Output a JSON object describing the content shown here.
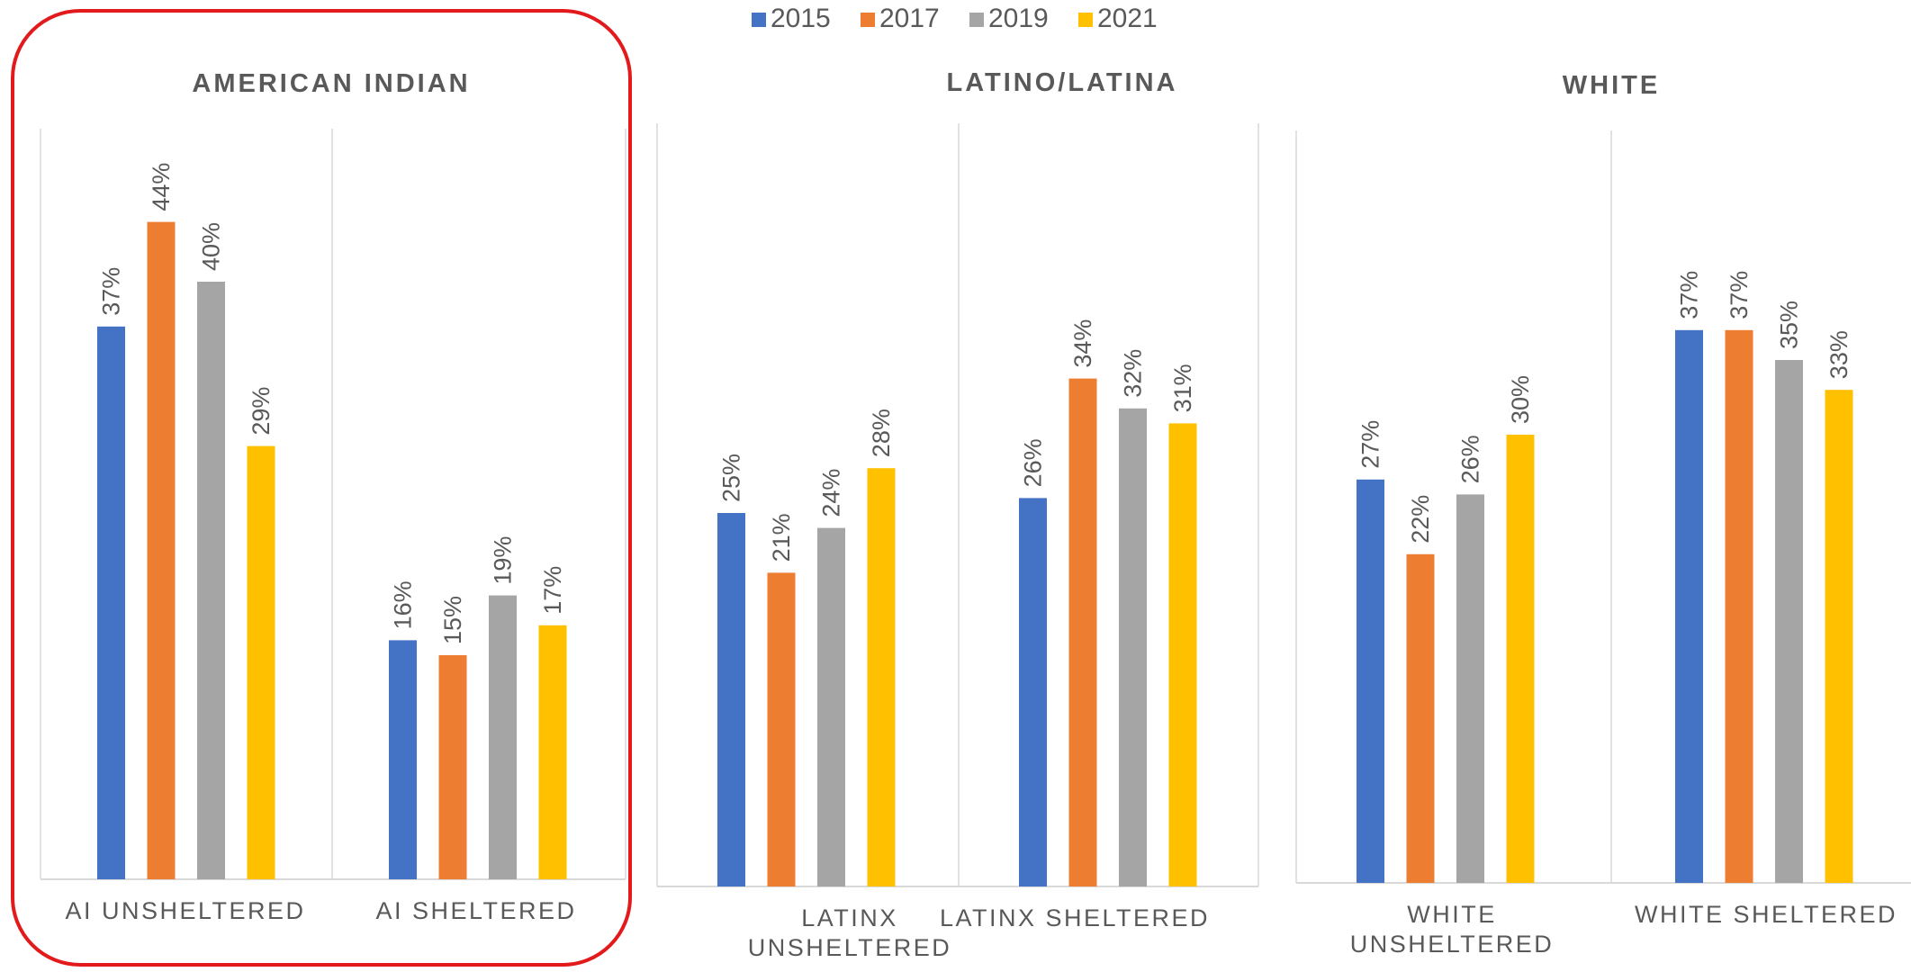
{
  "legend": [
    {
      "label": "2015",
      "color": "#4472C4"
    },
    {
      "label": "2017",
      "color": "#ED7D31"
    },
    {
      "label": "2019",
      "color": "#A5A5A5"
    },
    {
      "label": "2021",
      "color": "#FFC000"
    }
  ],
  "highlight_color": "#E31A1C",
  "chart_data": [
    {
      "type": "bar",
      "title": "AMERICAN INDIAN",
      "categories": [
        "AI UNSHELTERED",
        "AI SHELTERED"
      ],
      "series": [
        {
          "name": "2015",
          "values": [
            37,
            16
          ]
        },
        {
          "name": "2017",
          "values": [
            44,
            15
          ]
        },
        {
          "name": "2019",
          "values": [
            40,
            19
          ]
        },
        {
          "name": "2021",
          "values": [
            29,
            17
          ]
        }
      ],
      "data_labels": [
        [
          "37%",
          "44%",
          "40%",
          "29%"
        ],
        [
          "16%",
          "15%",
          "19%",
          "17%"
        ]
      ],
      "highlighted": true
    },
    {
      "type": "bar",
      "title": "LATINO/LATINA",
      "categories": [
        "LATINX UNSHELTERED",
        "LATINX SHELTERED"
      ],
      "series": [
        {
          "name": "2015",
          "values": [
            25,
            26
          ]
        },
        {
          "name": "2017",
          "values": [
            21,
            34
          ]
        },
        {
          "name": "2019",
          "values": [
            24,
            32
          ]
        },
        {
          "name": "2021",
          "values": [
            28,
            31
          ]
        }
      ],
      "data_labels": [
        [
          "25%",
          "21%",
          "24%",
          "28%"
        ],
        [
          "26%",
          "34%",
          "32%",
          "31%"
        ]
      ],
      "highlighted": false
    },
    {
      "type": "bar",
      "title": "WHITE",
      "categories": [
        "WHITE UNSHELTERED",
        "WHITE SHELTERED"
      ],
      "series": [
        {
          "name": "2015",
          "values": [
            27,
            37
          ]
        },
        {
          "name": "2017",
          "values": [
            22,
            37
          ]
        },
        {
          "name": "2019",
          "values": [
            26,
            35
          ]
        },
        {
          "name": "2021",
          "values": [
            30,
            33
          ]
        }
      ],
      "data_labels": [
        [
          "27%",
          "22%",
          "26%",
          "30%"
        ],
        [
          "37%",
          "37%",
          "35%",
          "33%"
        ]
      ],
      "highlighted": false
    }
  ]
}
